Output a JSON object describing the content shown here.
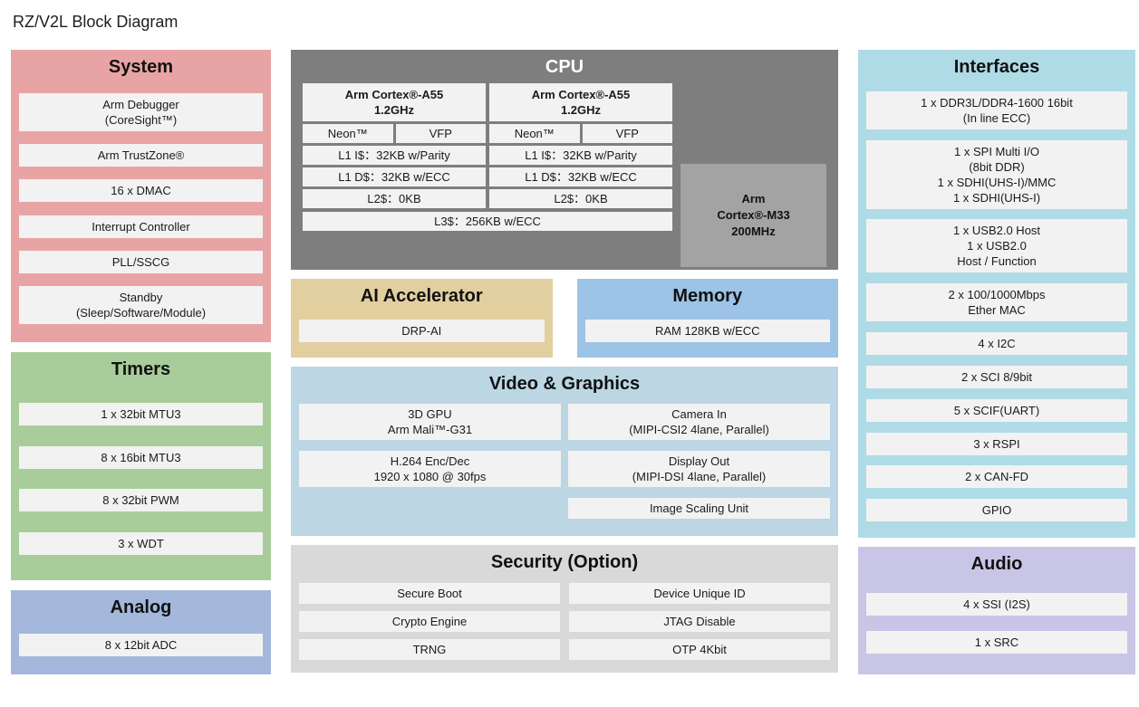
{
  "title": "RZ/V2L Block Diagram",
  "colors": {
    "system": "#E8A4A4",
    "timers": "#A8CD9B",
    "analog": "#A3B8DB",
    "cpu": "#7E7E7E",
    "cpu_m33": "#A3A3A3",
    "ai": "#E2CFA0",
    "memory": "#9DC3E6",
    "video": "#BCD6E4",
    "security": "#D9D9D9",
    "interfaces": "#AFDBE6",
    "audio": "#C8C5E6",
    "item_bg": "#F2F2F2"
  },
  "panels": {
    "system": {
      "title": "System",
      "items": [
        {
          "lines": [
            "Arm Debugger",
            "(CoreSight™)"
          ]
        },
        {
          "lines": [
            "Arm TrustZone®"
          ]
        },
        {
          "lines": [
            "16 x DMAC"
          ]
        },
        {
          "lines": [
            "Interrupt Controller"
          ]
        },
        {
          "lines": [
            "PLL/SSCG"
          ]
        },
        {
          "lines": [
            "Standby",
            "(Sleep/Software/Module)"
          ]
        }
      ]
    },
    "timers": {
      "title": "Timers",
      "items": [
        {
          "lines": [
            "1 x 32bit MTU3"
          ]
        },
        {
          "lines": [
            "8 x 16bit MTU3"
          ]
        },
        {
          "lines": [
            "8 x 32bit PWM"
          ]
        },
        {
          "lines": [
            "3 x WDT"
          ]
        }
      ]
    },
    "analog": {
      "title": "Analog",
      "items": [
        {
          "lines": [
            "8 x 12bit ADC"
          ]
        }
      ]
    },
    "cpu": {
      "title": "CPU",
      "cores": [
        {
          "name_lines": [
            "Arm Cortex®-A55",
            "1.2GHz"
          ],
          "units": [
            "Neon™",
            "VFP"
          ],
          "caches": [
            "L1 I$：32KB w/Parity",
            "L1 D$：32KB w/ECC",
            "L2$：0KB"
          ]
        },
        {
          "name_lines": [
            "Arm Cortex®-A55",
            "1.2GHz"
          ],
          "units": [
            "Neon™",
            "VFP"
          ],
          "caches": [
            "L1 I$：32KB w/Parity",
            "L1 D$：32KB w/ECC",
            "L2$：0KB"
          ]
        }
      ],
      "l3": "L3$：256KB w/ECC",
      "m33_lines": [
        "Arm",
        "Cortex®-M33",
        "200MHz"
      ]
    },
    "ai": {
      "title": "AI Accelerator",
      "items": [
        {
          "lines": [
            "DRP-AI"
          ]
        }
      ]
    },
    "memory": {
      "title": "Memory",
      "items": [
        {
          "lines": [
            "RAM 128KB w/ECC"
          ]
        }
      ]
    },
    "video": {
      "title": "Video & Graphics",
      "cells": [
        {
          "lines": [
            "3D GPU",
            "Arm Mali™-G31"
          ]
        },
        {
          "lines": [
            "Camera In",
            "(MIPI-CSI2 4lane, Parallel)"
          ]
        },
        {
          "lines": [
            "H.264 Enc/Dec",
            "1920 x 1080 @ 30fps"
          ]
        },
        {
          "lines": [
            "Display Out",
            "(MIPI-DSI 4lane, Parallel)"
          ]
        },
        {
          "lines": [
            "Image Scaling Unit"
          ]
        }
      ]
    },
    "security": {
      "title": "Security (Option)",
      "cells": [
        {
          "lines": [
            "Secure Boot"
          ]
        },
        {
          "lines": [
            "Device Unique ID"
          ]
        },
        {
          "lines": [
            "Crypto Engine"
          ]
        },
        {
          "lines": [
            "JTAG Disable"
          ]
        },
        {
          "lines": [
            "TRNG"
          ]
        },
        {
          "lines": [
            "OTP 4Kbit"
          ]
        }
      ]
    },
    "interfaces": {
      "title": "Interfaces",
      "items": [
        {
          "lines": [
            "1 x DDR3L/DDR4-1600 16bit",
            "(In line ECC)"
          ]
        },
        {
          "lines": [
            "1 x SPI Multi I/O",
            "(8bit DDR)",
            "1 x SDHI(UHS-I)/MMC",
            "1 x SDHI(UHS-I)"
          ]
        },
        {
          "lines": [
            "1 x USB2.0 Host",
            "1 x USB2.0",
            "Host / Function"
          ]
        },
        {
          "lines": [
            "2 x 100/1000Mbps",
            "Ether MAC"
          ]
        },
        {
          "lines": [
            "4 x I2C"
          ]
        },
        {
          "lines": [
            "2 x SCI 8/9bit"
          ]
        },
        {
          "lines": [
            "5 x SCIF(UART)"
          ]
        },
        {
          "lines": [
            "3 x RSPI"
          ]
        },
        {
          "lines": [
            "2 x CAN-FD"
          ]
        },
        {
          "lines": [
            "GPIO"
          ]
        }
      ]
    },
    "audio": {
      "title": "Audio",
      "items": [
        {
          "lines": [
            "4 x SSI (I2S)"
          ]
        },
        {
          "lines": [
            "1 x SRC"
          ]
        }
      ]
    }
  }
}
